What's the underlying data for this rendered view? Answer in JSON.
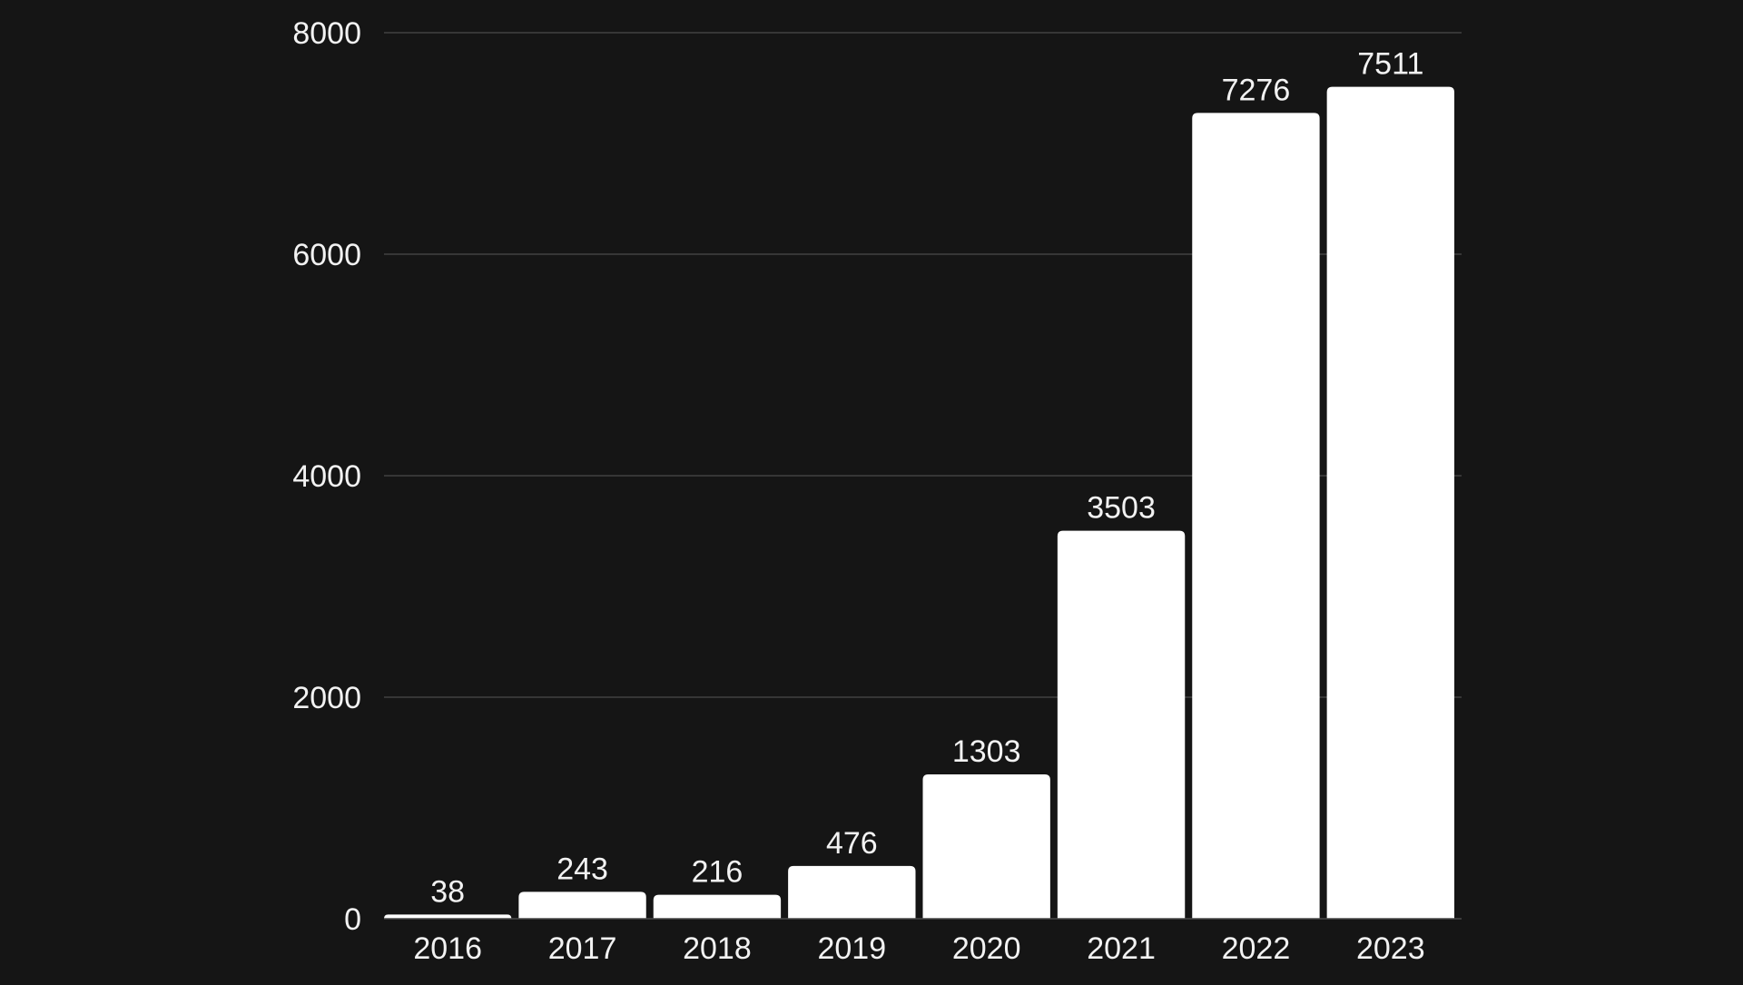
{
  "colors": {
    "background": "#151515",
    "bar": "#ffffff",
    "text": "#f2f2f2",
    "grid": "#4a4a4a"
  },
  "chart_data": {
    "type": "bar",
    "categories": [
      "2016",
      "2017",
      "2018",
      "2019",
      "2020",
      "2021",
      "2022",
      "2023"
    ],
    "values": [
      38,
      243,
      216,
      476,
      1303,
      3503,
      7276,
      7511
    ],
    "title": "",
    "xlabel": "",
    "ylabel": "",
    "ylim": [
      0,
      8000
    ],
    "yticks": [
      0,
      2000,
      4000,
      6000,
      8000
    ],
    "ytick_labels": [
      "0",
      "2000",
      "4000",
      "6000",
      "8000"
    ],
    "data_labels": [
      "38",
      "243",
      "216",
      "476",
      "1303",
      "3503",
      "7276",
      "7511"
    ],
    "grid": true,
    "legend": "none"
  }
}
